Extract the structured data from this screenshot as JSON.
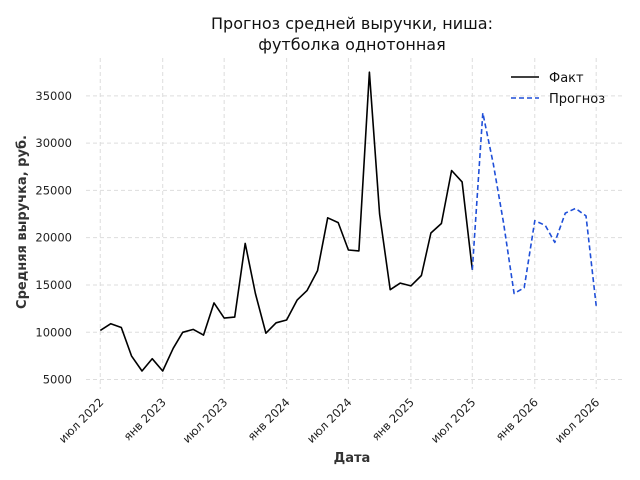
{
  "chart_data": {
    "type": "line",
    "title": "Прогноз средней выручки, ниша:",
    "subtitle": "футболка однотонная",
    "xlabel": "Дата",
    "ylabel": "Средняя выручка, руб.",
    "x_ticks": [
      "июл 2022",
      "янв 2023",
      "июл 2023",
      "янв 2024",
      "июл 2024",
      "янв 2025",
      "июл 2025",
      "янв 2026",
      "июл 2026"
    ],
    "y_ticks": [
      "5000",
      "10000",
      "15000",
      "20000",
      "25000",
      "30000",
      "35000"
    ],
    "ylim": [
      4000,
      39000
    ],
    "xlim": [
      "2022-05-20",
      "2026-09-15"
    ],
    "grid": true,
    "legend_position": "top-right",
    "series": [
      {
        "name": "Факт",
        "color": "#000000",
        "style": "solid",
        "points": [
          {
            "x": "2022-07-01",
            "y": 10200
          },
          {
            "x": "2022-08-01",
            "y": 10900
          },
          {
            "x": "2022-09-01",
            "y": 10500
          },
          {
            "x": "2022-10-01",
            "y": 7500
          },
          {
            "x": "2022-11-01",
            "y": 5900
          },
          {
            "x": "2022-12-01",
            "y": 7200
          },
          {
            "x": "2023-01-01",
            "y": 5900
          },
          {
            "x": "2023-02-01",
            "y": 8300
          },
          {
            "x": "2023-03-01",
            "y": 10000
          },
          {
            "x": "2023-04-01",
            "y": 10300
          },
          {
            "x": "2023-05-01",
            "y": 9700
          },
          {
            "x": "2023-06-01",
            "y": 13100
          },
          {
            "x": "2023-07-01",
            "y": 11500
          },
          {
            "x": "2023-08-01",
            "y": 11600
          },
          {
            "x": "2023-09-01",
            "y": 19400
          },
          {
            "x": "2023-10-01",
            "y": 14100
          },
          {
            "x": "2023-11-01",
            "y": 9900
          },
          {
            "x": "2023-12-01",
            "y": 11000
          },
          {
            "x": "2024-01-01",
            "y": 11300
          },
          {
            "x": "2024-02-01",
            "y": 13400
          },
          {
            "x": "2024-03-01",
            "y": 14400
          },
          {
            "x": "2024-04-01",
            "y": 16500
          },
          {
            "x": "2024-05-01",
            "y": 22100
          },
          {
            "x": "2024-06-01",
            "y": 21600
          },
          {
            "x": "2024-07-01",
            "y": 18700
          },
          {
            "x": "2024-08-01",
            "y": 18600
          },
          {
            "x": "2024-09-01",
            "y": 37500
          },
          {
            "x": "2024-10-01",
            "y": 22500
          },
          {
            "x": "2024-11-01",
            "y": 14500
          },
          {
            "x": "2024-12-01",
            "y": 15200
          },
          {
            "x": "2025-01-01",
            "y": 14900
          },
          {
            "x": "2025-02-01",
            "y": 16000
          },
          {
            "x": "2025-03-01",
            "y": 20500
          },
          {
            "x": "2025-04-01",
            "y": 21500
          },
          {
            "x": "2025-05-01",
            "y": 27100
          },
          {
            "x": "2025-06-01",
            "y": 25900
          },
          {
            "x": "2025-07-01",
            "y": 16600
          }
        ]
      },
      {
        "name": "Прогноз",
        "color": "#1f4fd8",
        "style": "dashed",
        "points": [
          {
            "x": "2025-07-01",
            "y": 16600
          },
          {
            "x": "2025-08-01",
            "y": 33200
          },
          {
            "x": "2025-09-01",
            "y": 27800
          },
          {
            "x": "2025-10-01",
            "y": 21600
          },
          {
            "x": "2025-11-01",
            "y": 14100
          },
          {
            "x": "2025-12-01",
            "y": 14700
          },
          {
            "x": "2026-01-01",
            "y": 21800
          },
          {
            "x": "2026-02-01",
            "y": 21300
          },
          {
            "x": "2026-03-01",
            "y": 19500
          },
          {
            "x": "2026-04-01",
            "y": 22600
          },
          {
            "x": "2026-05-01",
            "y": 23100
          },
          {
            "x": "2026-06-01",
            "y": 22300
          },
          {
            "x": "2026-07-01",
            "y": 12800
          }
        ]
      }
    ]
  }
}
